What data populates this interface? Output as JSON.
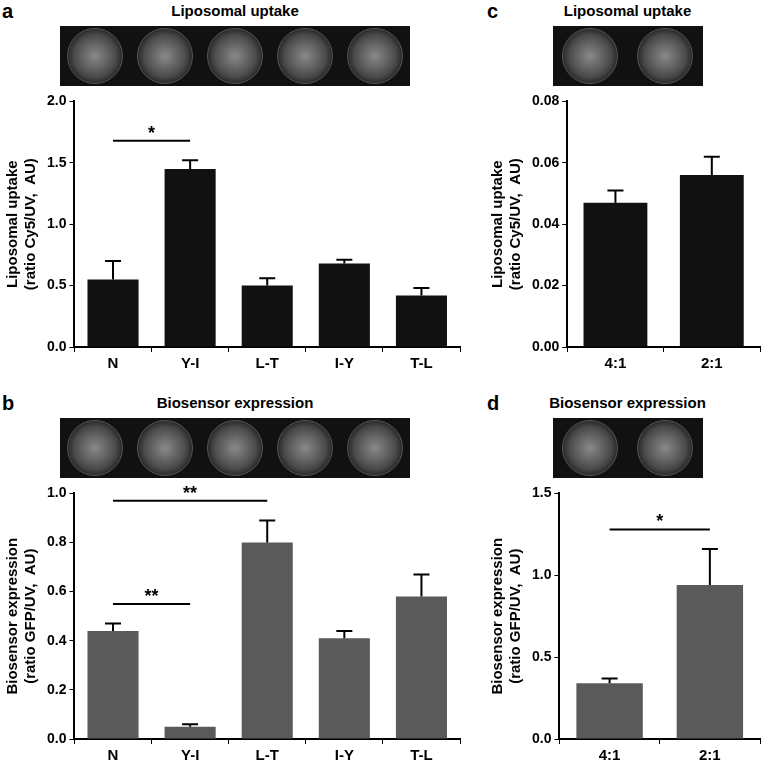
{
  "chart_data": [
    {
      "panel": "a",
      "title": "Liposomal uptake",
      "type": "bar",
      "categories": [
        "N",
        "Y-I",
        "L-T",
        "I-Y",
        "T-L"
      ],
      "values": [
        0.55,
        1.45,
        0.5,
        0.68,
        0.42
      ],
      "errors": [
        0.15,
        0.07,
        0.06,
        0.03,
        0.06
      ],
      "color": "#111111",
      "ylabel": [
        "Liposomal uptake",
        "(ratio Cy5/UV,  AU)"
      ],
      "ylim": [
        0,
        2
      ],
      "yticks": [
        {
          "value": 0,
          "label": "0.0"
        },
        0.5,
        {
          "value": 1,
          "label": "1.0"
        },
        1.5,
        {
          "value": 2,
          "label": "2.0"
        }
      ],
      "grid": false,
      "annotations": [
        {
          "from": "N",
          "to": "Y-I",
          "text": "*"
        }
      ]
    },
    {
      "panel": "b",
      "title": "Biosensor expression",
      "type": "bar",
      "categories": [
        "N",
        "Y-I",
        "L-T",
        "I-Y",
        "T-L"
      ],
      "values": [
        0.44,
        0.05,
        0.8,
        0.41,
        0.58
      ],
      "errors": [
        0.03,
        0.01,
        0.09,
        0.03,
        0.09
      ],
      "color": "#5a5a5a",
      "ylabel": [
        "Biosensor expression",
        "(ratio GFP/UV,  AU)"
      ],
      "ylim": [
        0,
        1
      ],
      "yticks": [
        {
          "value": 0,
          "label": "0.0"
        },
        0.2,
        0.4,
        0.6,
        0.8,
        {
          "value": 1,
          "label": "1.0"
        }
      ],
      "grid": false,
      "annotations": [
        {
          "from": "N",
          "to": "Y-I",
          "text": "**"
        },
        {
          "from": "N",
          "to": "L-T",
          "text": "**"
        }
      ]
    },
    {
      "panel": "c",
      "title": "Liposomal uptake",
      "type": "bar",
      "categories": [
        "4:1",
        "2:1"
      ],
      "values": [
        0.047,
        0.056
      ],
      "errors": [
        0.004,
        0.006
      ],
      "color": "#111111",
      "ylabel": [
        "Liposomal uptake",
        "(ratio Cy5/UV,  AU)"
      ],
      "ylim": [
        0,
        0.08
      ],
      "yticks": [
        {
          "value": 0,
          "label": "0.00"
        },
        {
          "value": 0.02,
          "label": "0.02"
        },
        {
          "value": 0.04,
          "label": "0.04"
        },
        {
          "value": 0.06,
          "label": "0.06"
        },
        {
          "value": 0.08,
          "label": "0.08"
        }
      ],
      "grid": false,
      "annotations": []
    },
    {
      "panel": "d",
      "title": "Biosensor expression",
      "type": "bar",
      "categories": [
        "4:1",
        "2:1"
      ],
      "values": [
        0.34,
        0.94
      ],
      "errors": [
        0.03,
        0.22
      ],
      "color": "#5a5a5a",
      "ylabel": [
        "Biosensor expression",
        "(ratio GFP/UV,  AU)"
      ],
      "ylim": [
        0,
        1.5
      ],
      "yticks": [
        {
          "value": 0,
          "label": "0.0"
        },
        0.5,
        {
          "value": 1,
          "label": "1.0"
        },
        1.5
      ],
      "grid": false,
      "annotations": [
        {
          "from": "4:1",
          "to": "2:1",
          "text": "*"
        }
      ]
    }
  ]
}
